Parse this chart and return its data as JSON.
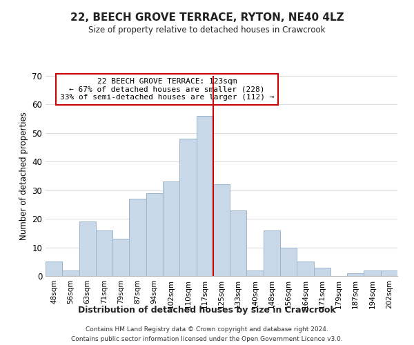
{
  "title": "22, BEECH GROVE TERRACE, RYTON, NE40 4LZ",
  "subtitle": "Size of property relative to detached houses in Crawcrook",
  "xlabel": "Distribution of detached houses by size in Crawcrook",
  "ylabel": "Number of detached properties",
  "bar_labels": [
    "48sqm",
    "56sqm",
    "63sqm",
    "71sqm",
    "79sqm",
    "87sqm",
    "94sqm",
    "102sqm",
    "110sqm",
    "117sqm",
    "125sqm",
    "133sqm",
    "140sqm",
    "148sqm",
    "156sqm",
    "164sqm",
    "171sqm",
    "179sqm",
    "187sqm",
    "194sqm",
    "202sqm"
  ],
  "bar_heights": [
    5,
    2,
    19,
    16,
    13,
    27,
    29,
    33,
    48,
    56,
    32,
    23,
    2,
    16,
    10,
    5,
    3,
    0,
    1,
    2,
    2
  ],
  "bar_color": "#c8d8e8",
  "bar_edgecolor": "#9ab5cc",
  "highlight_line_color": "#cc0000",
  "vline_x": 10,
  "ylim": [
    0,
    70
  ],
  "yticks": [
    0,
    10,
    20,
    30,
    40,
    50,
    60,
    70
  ],
  "annotation_title": "22 BEECH GROVE TERRACE: 123sqm",
  "annotation_line1": "← 67% of detached houses are smaller (228)",
  "annotation_line2": "33% of semi-detached houses are larger (112) →",
  "annotation_box_color": "#ffffff",
  "annotation_box_edgecolor": "#cc0000",
  "footer_line1": "Contains HM Land Registry data © Crown copyright and database right 2024.",
  "footer_line2": "Contains public sector information licensed under the Open Government Licence v3.0.",
  "background_color": "#ffffff",
  "grid_color": "#dddddd"
}
